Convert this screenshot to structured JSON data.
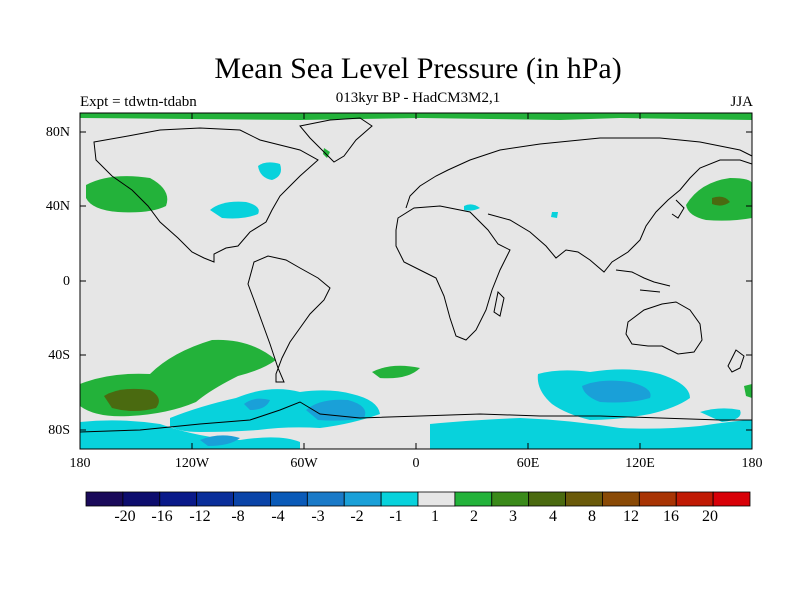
{
  "title": "Mean Sea Level Pressure (in hPa)",
  "subtitle": "013kyr BP - HadCM3M2,1",
  "left_label": "Expt = tdwtn-tdabn",
  "season": "JJA",
  "lat_labels": [
    "80N",
    "40N",
    "0",
    "40S",
    "80S"
  ],
  "lon_labels": [
    "180",
    "120W",
    "60W",
    "0",
    "60E",
    "120E",
    "180"
  ],
  "colorbar": {
    "colors": [
      "#1a0a5a",
      "#0d0d6e",
      "#0a1a8a",
      "#0a2e9a",
      "#0a44a8",
      "#0a5ab8",
      "#1a7ac8",
      "#1aa0d8",
      "#08d2dc",
      "#e6e6e6",
      "#23b23a",
      "#3a8a1a",
      "#4a6a10",
      "#6a5a0a",
      "#8a4a06",
      "#a83404",
      "#c01a04",
      "#d80008"
    ],
    "labels": [
      "-20",
      "-16",
      "-12",
      "-8",
      "-4",
      "-3",
      "-2",
      "-1",
      "1",
      "2",
      "3",
      "4",
      "8",
      "12",
      "16",
      "20"
    ]
  },
  "map_colors": {
    "background": "#e6e6e6",
    "positive_1": "#23b23a",
    "positive_3": "#4a6a10",
    "negative_1": "#08d2dc",
    "negative_2": "#1aa0d8",
    "coast": "#000000"
  }
}
